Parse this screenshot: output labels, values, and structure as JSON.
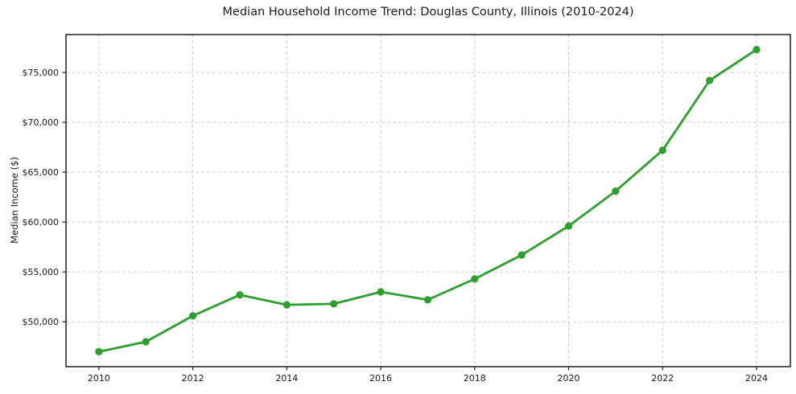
{
  "chart": {
    "title": "Median Household Income Trend: Douglas County, Illinois (2010-2024)",
    "ylabel": "Median Income ($)"
  },
  "chart_data": {
    "type": "line",
    "title": "Median Household Income Trend: Douglas County, Illinois (2010-2024)",
    "xlabel": "",
    "ylabel": "Median Income ($)",
    "x": [
      2010,
      2011,
      2012,
      2013,
      2014,
      2015,
      2016,
      2017,
      2018,
      2019,
      2020,
      2021,
      2022,
      2023,
      2024
    ],
    "series": [
      {
        "name": "Median Household Income",
        "values": [
          47000,
          48000,
          50600,
          52700,
          51700,
          51800,
          53000,
          52200,
          54300,
          56700,
          59600,
          63100,
          67200,
          74200,
          77300
        ]
      }
    ],
    "x_ticks": {
      "values": [
        2010,
        2012,
        2014,
        2016,
        2018,
        2020,
        2022,
        2024
      ],
      "labels": [
        "2010",
        "2012",
        "2014",
        "2016",
        "2018",
        "2020",
        "2022",
        "2024"
      ]
    },
    "y_ticks": {
      "values": [
        50000,
        55000,
        60000,
        65000,
        70000,
        75000
      ],
      "labels": [
        "$50,000",
        "$55,000",
        "$60,000",
        "$65,000",
        "$70,000",
        "$75,000"
      ]
    },
    "xlim": [
      2009.3,
      2024.72
    ],
    "ylim": [
      45500,
      78800
    ],
    "grid": true,
    "grid_style": "dashed",
    "legend": "none",
    "line_color": "#2ca02c",
    "marker": "circle",
    "marker_radius": 4.6,
    "line_width": 2.8,
    "grid_color": "#cdcdcd",
    "axis_color": "#1f1f1f",
    "text_color": "#1a1a1a",
    "background_color": "#ffffff"
  }
}
